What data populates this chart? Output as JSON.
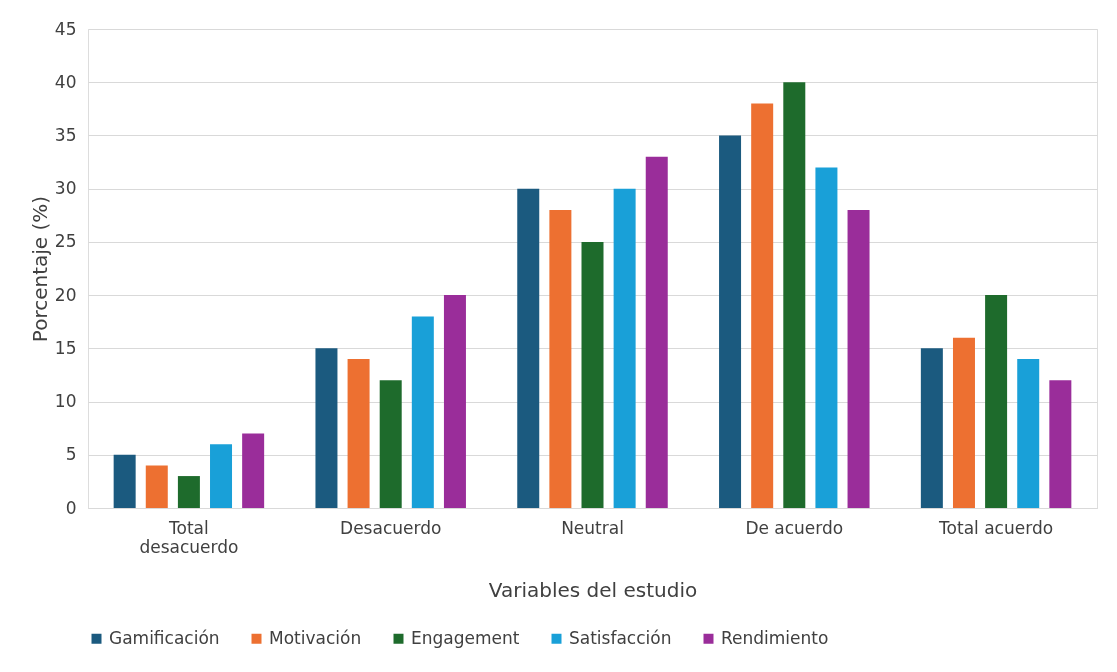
{
  "chart_data": {
    "type": "bar",
    "xlabel": "Variables del estudio",
    "ylabel": "Porcentaje (%)",
    "categories": [
      "Total desacuerdo",
      "Desacuerdo",
      "Neutral",
      "De acuerdo",
      "Total acuerdo"
    ],
    "series": [
      {
        "name": "Gamificación",
        "color": "#1b5a7f",
        "values": [
          5,
          15,
          30,
          35,
          15
        ]
      },
      {
        "name": "Motivación",
        "color": "#ed7031",
        "values": [
          4,
          14,
          28,
          38,
          16
        ]
      },
      {
        "name": "Engagement",
        "color": "#1e6b2c",
        "values": [
          3,
          12,
          25,
          40,
          20
        ]
      },
      {
        "name": "Satisfacción",
        "color": "#19a0d8",
        "values": [
          6,
          18,
          30,
          32,
          14
        ]
      },
      {
        "name": "Rendimiento",
        "color": "#9a2d9a",
        "values": [
          7,
          20,
          33,
          28,
          12
        ]
      }
    ],
    "ylim": [
      0,
      45
    ],
    "yticks": [
      0,
      5,
      10,
      15,
      20,
      25,
      30,
      35,
      40,
      45
    ],
    "grid": "y",
    "legend": "bottom"
  }
}
